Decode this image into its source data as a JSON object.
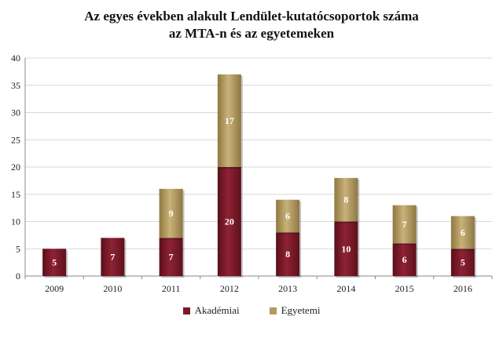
{
  "chart_data": {
    "type": "bar",
    "stacked": true,
    "title_line1": "Az egyes években alakult Lendület-kutatócsoportok száma",
    "title_line2": "az MTA-n és az egyetemeken",
    "xlabel": "",
    "ylabel": "",
    "ylim": [
      0,
      40
    ],
    "yticks": [
      0,
      5,
      10,
      15,
      20,
      25,
      30,
      35,
      40
    ],
    "categories": [
      "2009",
      "2010",
      "2011",
      "2012",
      "2013",
      "2014",
      "2015",
      "2016"
    ],
    "series": [
      {
        "name": "Akadémiai",
        "values": [
          5,
          7,
          7,
          20,
          8,
          10,
          6,
          5
        ],
        "color": "#7b1a28"
      },
      {
        "name": "Egyetemi",
        "values": [
          0,
          0,
          9,
          17,
          6,
          8,
          7,
          6
        ],
        "color": "#b39a5f"
      }
    ],
    "grid": true,
    "legend_position": "bottom"
  }
}
